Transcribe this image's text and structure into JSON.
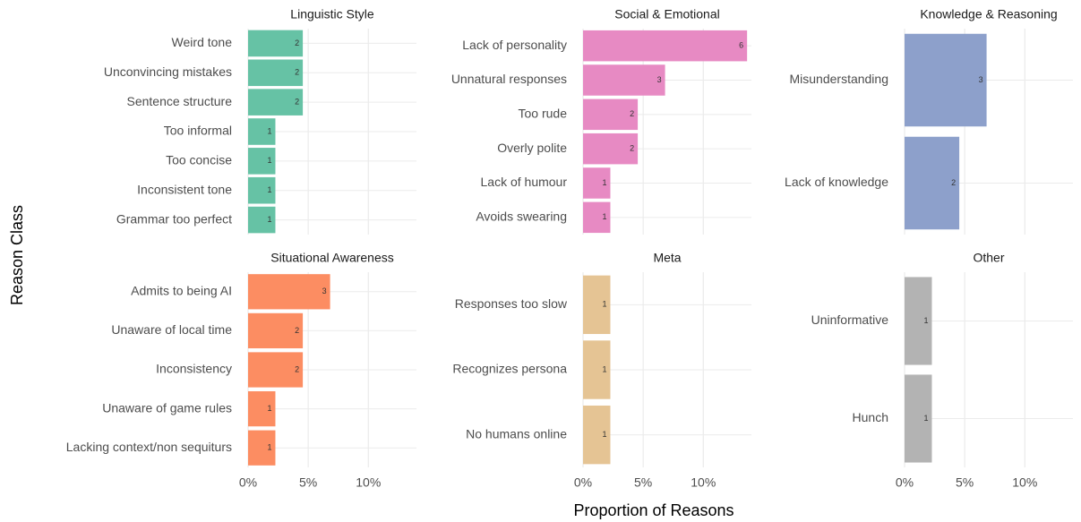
{
  "axis_labels": {
    "x": "Proportion of Reasons",
    "y": "Reason Class"
  },
  "chart_data": [
    {
      "type": "bar",
      "title": "Linguistic Style",
      "color": "#66c2a5",
      "categories": [
        "Weird tone",
        "Unconvincing mistakes",
        "Sentence structure",
        "Too informal",
        "Too concise",
        "Inconsistent tone",
        "Grammar too perfect"
      ],
      "values": [
        4.55,
        4.55,
        4.55,
        2.27,
        2.27,
        2.27,
        2.27
      ],
      "counts": [
        2,
        2,
        2,
        1,
        1,
        1,
        1
      ],
      "xlim": [
        0,
        14
      ],
      "xticks": [
        {
          "value": 0,
          "label": "0%"
        },
        {
          "value": 5,
          "label": "5%"
        },
        {
          "value": 10,
          "label": "10%"
        }
      ]
    },
    {
      "type": "bar",
      "title": "Social & Emotional",
      "color": "#e78ac3",
      "categories": [
        "Lack of personality",
        "Unnatural responses",
        "Too rude",
        "Overly polite",
        "Lack of humour",
        "Avoids swearing"
      ],
      "values": [
        13.64,
        6.82,
        4.55,
        4.55,
        2.27,
        2.27
      ],
      "counts": [
        6,
        3,
        2,
        2,
        1,
        1
      ],
      "xlim": [
        0,
        14
      ],
      "xticks": [
        {
          "value": 0,
          "label": "0%"
        },
        {
          "value": 5,
          "label": "5%"
        },
        {
          "value": 10,
          "label": "10%"
        }
      ]
    },
    {
      "type": "bar",
      "title": "Knowledge & Reasoning",
      "color": "#8da0cb",
      "categories": [
        "Misunderstanding",
        "Lack of knowledge"
      ],
      "values": [
        6.82,
        4.55
      ],
      "counts": [
        3,
        2
      ],
      "xlim": [
        0,
        14
      ],
      "xticks": [
        {
          "value": 0,
          "label": "0%"
        },
        {
          "value": 5,
          "label": "5%"
        },
        {
          "value": 10,
          "label": "10%"
        }
      ]
    },
    {
      "type": "bar",
      "title": "Situational Awareness",
      "color": "#fc8d62",
      "categories": [
        "Admits to being AI",
        "Unaware of local time",
        "Inconsistency",
        "Unaware of game rules",
        "Lacking context/non sequiturs"
      ],
      "values": [
        6.82,
        4.55,
        4.55,
        2.27,
        2.27
      ],
      "counts": [
        3,
        2,
        2,
        1,
        1
      ],
      "xlim": [
        0,
        14
      ],
      "xticks": [
        {
          "value": 0,
          "label": "0%"
        },
        {
          "value": 5,
          "label": "5%"
        },
        {
          "value": 10,
          "label": "10%"
        }
      ]
    },
    {
      "type": "bar",
      "title": "Meta",
      "color": "#e5c494",
      "categories": [
        "Responses too slow",
        "Recognizes persona",
        "No humans online"
      ],
      "values": [
        2.27,
        2.27,
        2.27
      ],
      "counts": [
        1,
        1,
        1
      ],
      "xlim": [
        0,
        14
      ],
      "xticks": [
        {
          "value": 0,
          "label": "0%"
        },
        {
          "value": 5,
          "label": "5%"
        },
        {
          "value": 10,
          "label": "10%"
        }
      ]
    },
    {
      "type": "bar",
      "title": "Other",
      "color": "#b3b3b3",
      "categories": [
        "Uninformative",
        "Hunch"
      ],
      "values": [
        2.27,
        2.27
      ],
      "counts": [
        1,
        1
      ],
      "xlim": [
        0,
        14
      ],
      "xticks": [
        {
          "value": 0,
          "label": "0%"
        },
        {
          "value": 5,
          "label": "5%"
        },
        {
          "value": 10,
          "label": "10%"
        }
      ]
    }
  ]
}
